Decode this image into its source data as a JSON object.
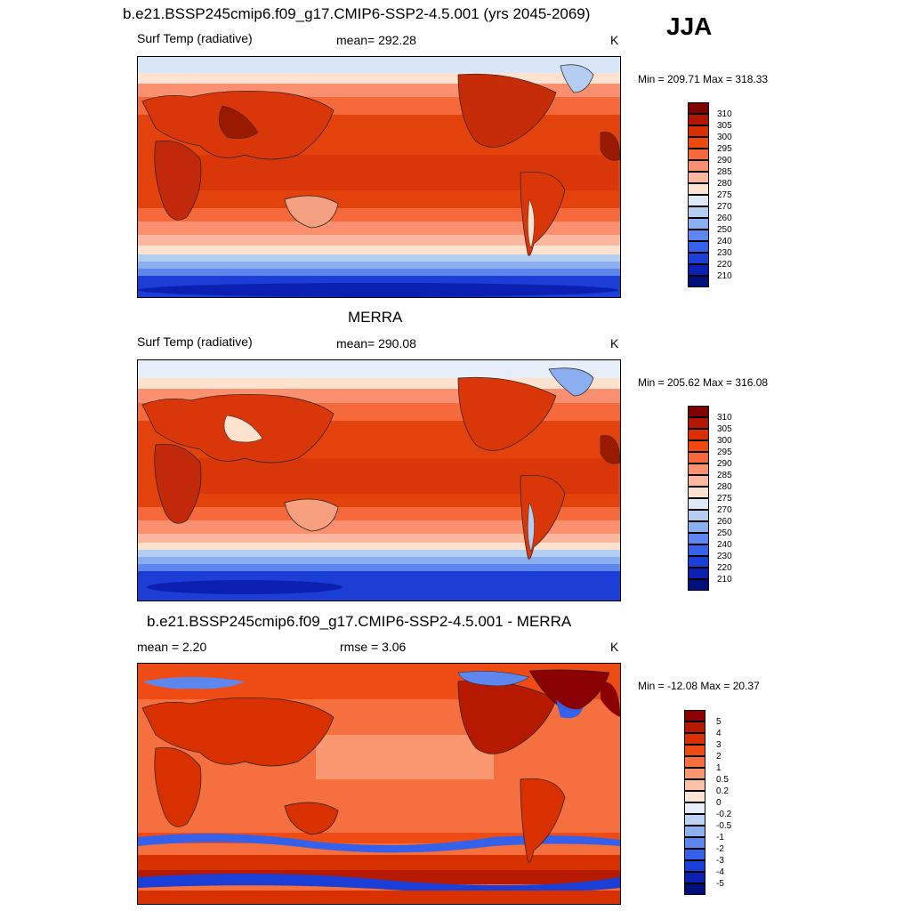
{
  "season": "JJA",
  "panels": [
    {
      "title": "b.e21.BSSP245cmip6.f09_g17.CMIP6-SSP2-4.5.001 (yrs 2045-2069)",
      "left": "Surf Temp (radiative)",
      "center": "mean= 292.28",
      "units": "K",
      "minmax": "Min = 209.71 Max = 318.33",
      "colorbar_labels": [
        "310",
        "305",
        "300",
        "295",
        "290",
        "285",
        "280",
        "275",
        "270",
        "260",
        "250",
        "240",
        "230",
        "220",
        "210"
      ],
      "colorbar_colors": [
        "#7f0000",
        "#b31600",
        "#d92e00",
        "#ee4a10",
        "#f6693a",
        "#fa9070",
        "#fcb89e",
        "#fde2cf",
        "#dde9f7",
        "#b6cdf2",
        "#8aaef0",
        "#5d87ee",
        "#3561ea",
        "#1b3ed6",
        "#0b1fb0",
        "#00107a"
      ]
    },
    {
      "title": "MERRA",
      "left": "Surf Temp (radiative)",
      "center": "mean= 290.08",
      "units": "K",
      "minmax": "Min = 205.62 Max = 316.08",
      "colorbar_labels": [
        "310",
        "305",
        "300",
        "295",
        "290",
        "285",
        "280",
        "275",
        "270",
        "260",
        "250",
        "240",
        "230",
        "220",
        "210"
      ],
      "colorbar_colors": [
        "#7f0000",
        "#b31600",
        "#d92e00",
        "#ee4a10",
        "#f6693a",
        "#fa9070",
        "#fcb89e",
        "#fde2cf",
        "#dde9f7",
        "#b6cdf2",
        "#8aaef0",
        "#5d87ee",
        "#3561ea",
        "#1b3ed6",
        "#0b1fb0",
        "#00107a"
      ]
    },
    {
      "title": "b.e21.BSSP245cmip6.f09_g17.CMIP6-SSP2-4.5.001 - MERRA",
      "left": "mean =   2.20",
      "center": "rmse =   3.06",
      "units": "K",
      "minmax": "Min = -12.08 Max =  20.37",
      "colorbar_labels": [
        "5",
        "4",
        "3",
        "2",
        "1",
        "0.5",
        "0.2",
        "0",
        "-0.2",
        "-0.5",
        "-1",
        "-2",
        "-3",
        "-4",
        "-5"
      ],
      "colorbar_colors": [
        "#8b0000",
        "#b51a00",
        "#d93000",
        "#ee4c14",
        "#f5703e",
        "#f99870",
        "#fcc1a6",
        "#fde4d6",
        "#e6eefa",
        "#bcd3f5",
        "#8db1f0",
        "#5d87ee",
        "#3561ea",
        "#1b3ed6",
        "#0b1fb0",
        "#00107a"
      ]
    }
  ]
}
